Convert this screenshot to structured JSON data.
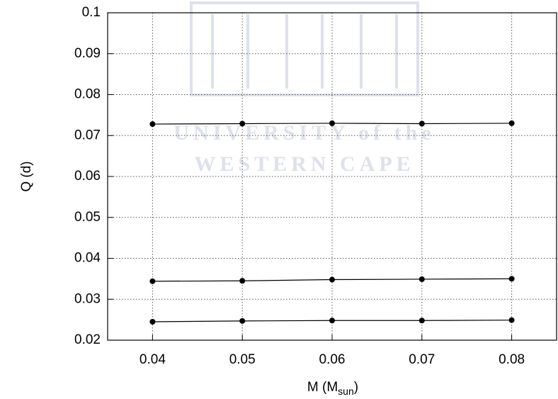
{
  "chart_data": {
    "type": "line",
    "xlabel": {
      "text": "M (M",
      "subscript": "sun",
      "suffix": ")"
    },
    "ylabel": "Q (d)",
    "watermark": [
      "UNIVERSITY of the",
      "WESTERN CAPE"
    ],
    "x": [
      0.04,
      0.05,
      0.06,
      0.07,
      0.08
    ],
    "series": [
      {
        "color": "#000000",
        "values": [
          0.0728,
          0.0729,
          0.073,
          0.0729,
          0.073
        ]
      },
      {
        "color": "#000000",
        "values": [
          0.0344,
          0.0345,
          0.0348,
          0.0349,
          0.035
        ]
      },
      {
        "color": "#000000",
        "values": [
          0.0245,
          0.0247,
          0.0248,
          0.0248,
          0.0249
        ]
      }
    ],
    "xlim": [
      0.035,
      0.085
    ],
    "xticks": [
      0.04,
      0.05,
      0.06,
      0.07,
      0.08
    ],
    "ylim": [
      0.02,
      0.1
    ],
    "yticks": [
      0.02,
      0.03,
      0.04,
      0.05,
      0.06,
      0.07,
      0.08,
      0.09,
      0.1
    ],
    "grid": true
  }
}
